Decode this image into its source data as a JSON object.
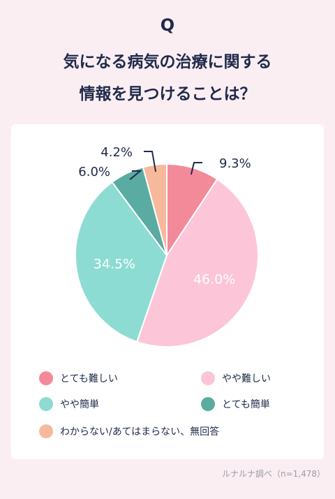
{
  "header": {
    "q_label": "Q",
    "title_line1": "気になる病気の治療に関する",
    "title_line2": "情報を見つけることは？"
  },
  "chart_data": {
    "type": "pie",
    "slices": [
      {
        "label": "とても難しい",
        "value": 9.3,
        "display": "9.3%",
        "color": "#f38a9a"
      },
      {
        "label": "やや難しい",
        "value": 46.0,
        "display": "46.0%",
        "color": "#fcc5d8"
      },
      {
        "label": "やや簡単",
        "value": 34.5,
        "display": "34.5%",
        "color": "#8ddcd4"
      },
      {
        "label": "とても簡単",
        "value": 6.0,
        "display": "6.0%",
        "color": "#5aaba2"
      },
      {
        "label": "わからない/あてはまらない、無回答",
        "value": 4.2,
        "display": "4.2%",
        "color": "#f6b99c"
      }
    ]
  },
  "legend": {
    "items": [
      {
        "label": "とても難しい",
        "color": "#f38a9a"
      },
      {
        "label": "やや難しい",
        "color": "#fcc5d8"
      },
      {
        "label": "やや簡単",
        "color": "#8ddcd4"
      },
      {
        "label": "とても簡単",
        "color": "#5aaba2"
      },
      {
        "label": "わからない/あてはまらない、無回答",
        "color": "#f6b99c"
      }
    ]
  },
  "source": "ルナルナ調べ（n=1,478）"
}
